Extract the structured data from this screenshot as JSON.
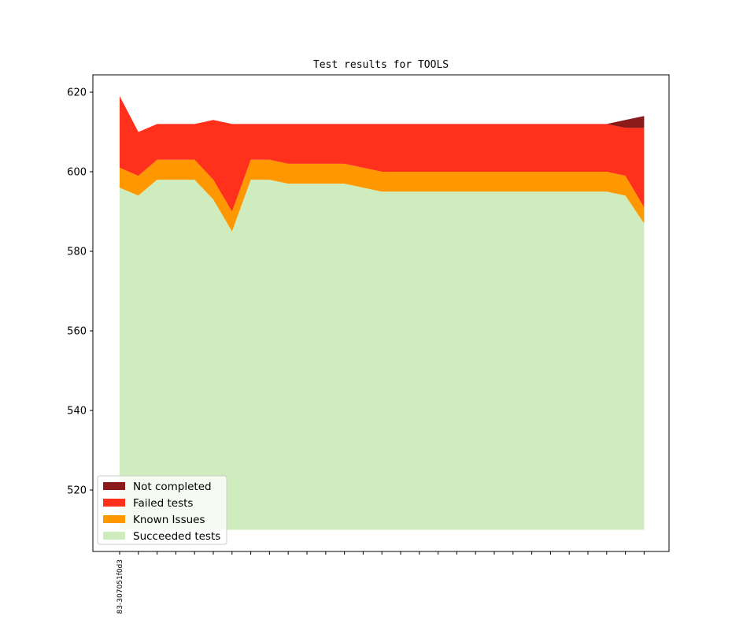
{
  "chart_data": {
    "type": "area",
    "stacked": true,
    "title": "Test results for TOOLS",
    "xlabel": "",
    "ylabel": "",
    "x_tick_labels": [
      "83-307051f0d3"
    ],
    "yticks": [
      520,
      540,
      560,
      580,
      600,
      620
    ],
    "ylim": [
      505,
      625
    ],
    "baseline": 510,
    "num_points": 29,
    "legend_position": "lower-left",
    "series": [
      {
        "name": "Succeeded tests",
        "color": "#cfecbf",
        "tops": [
          596,
          594,
          598,
          598,
          598,
          593,
          585,
          598,
          598,
          597,
          597,
          597,
          597,
          596,
          595,
          595,
          595,
          595,
          595,
          595,
          595,
          595,
          595,
          595,
          595,
          595,
          595,
          594,
          587
        ]
      },
      {
        "name": "Known Issues",
        "color": "#ff9800",
        "tops": [
          601,
          599,
          603,
          603,
          603,
          598,
          590,
          603,
          603,
          602,
          602,
          602,
          602,
          601,
          600,
          600,
          600,
          600,
          600,
          600,
          600,
          600,
          600,
          600,
          600,
          600,
          600,
          599,
          591
        ]
      },
      {
        "name": "Failed tests",
        "color": "#ff311c",
        "tops": [
          619,
          610,
          612,
          612,
          612,
          613,
          612,
          612,
          612,
          612,
          612,
          612,
          612,
          612,
          612,
          612,
          612,
          612,
          612,
          612,
          612,
          612,
          612,
          612,
          612,
          612,
          612,
          611,
          611
        ]
      },
      {
        "name": "Not completed",
        "color": "#8b1a1a",
        "tops": [
          619,
          610,
          612,
          612,
          612,
          613,
          612,
          612,
          612,
          612,
          612,
          612,
          612,
          612,
          612,
          612,
          612,
          612,
          612,
          612,
          612,
          612,
          612,
          612,
          612,
          612,
          612,
          613,
          614
        ]
      }
    ],
    "legend_order": [
      "Not completed",
      "Failed tests",
      "Known Issues",
      "Succeeded tests"
    ]
  }
}
